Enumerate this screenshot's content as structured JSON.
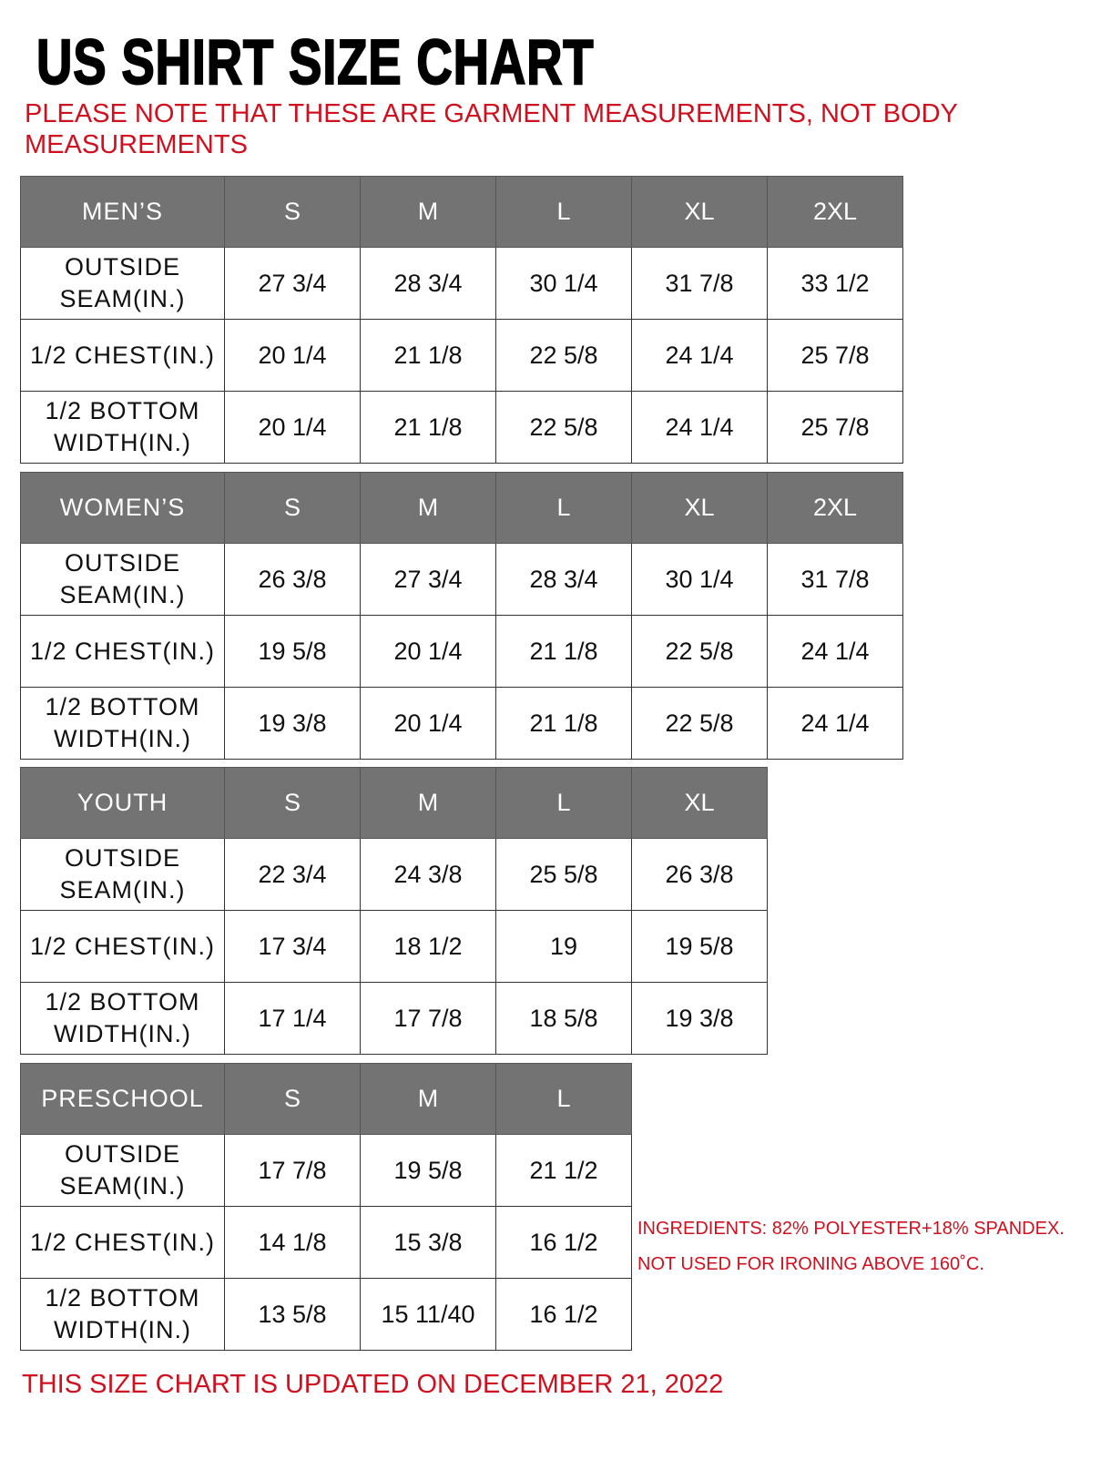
{
  "title": "US SHIRT SIZE CHART",
  "note": "PLEASE NOTE THAT THESE ARE GARMENT MEASUREMENTS, NOT BODY MEASUREMENTS",
  "colors": {
    "header_bg": "#737373",
    "accent_red": "#d0101e"
  },
  "tables": [
    {
      "category": "MEN’S",
      "sizes": [
        "S",
        "M",
        "L",
        "XL",
        "2XL"
      ],
      "rows": [
        {
          "label": "OUTSIDE SEAM(IN.)",
          "values": [
            "27 3/4",
            "28 3/4",
            "30 1/4",
            "31 7/8",
            "33 1/2"
          ]
        },
        {
          "label": "1/2 CHEST(IN.)",
          "values": [
            "20 1/4",
            "21 1/8",
            "22 5/8",
            "24 1/4",
            "25 7/8"
          ]
        },
        {
          "label": "1/2 BOTTOM WIDTH(IN.)",
          "values": [
            "20 1/4",
            "21 1/8",
            "22 5/8",
            "24 1/4",
            "25 7/8"
          ]
        }
      ]
    },
    {
      "category": "WOMEN’S",
      "sizes": [
        "S",
        "M",
        "L",
        "XL",
        "2XL"
      ],
      "rows": [
        {
          "label": "OUTSIDE SEAM(IN.)",
          "values": [
            "26 3/8",
            "27 3/4",
            "28 3/4",
            "30 1/4",
            "31 7/8"
          ]
        },
        {
          "label": "1/2 CHEST(IN.)",
          "values": [
            "19 5/8",
            "20 1/4",
            "21 1/8",
            "22 5/8",
            "24 1/4"
          ]
        },
        {
          "label": "1/2 BOTTOM WIDTH(IN.)",
          "values": [
            "19 3/8",
            "20 1/4",
            "21 1/8",
            "22 5/8",
            "24 1/4"
          ]
        }
      ]
    },
    {
      "category": "YOUTH",
      "sizes": [
        "S",
        "M",
        "L",
        "XL"
      ],
      "rows": [
        {
          "label": "OUTSIDE SEAM(IN.)",
          "values": [
            "22 3/4",
            "24 3/8",
            "25 5/8",
            "26 3/8"
          ]
        },
        {
          "label": "1/2 CHEST(IN.)",
          "values": [
            "17 3/4",
            "18 1/2",
            "19",
            "19 5/8"
          ]
        },
        {
          "label": "1/2 BOTTOM WIDTH(IN.)",
          "values": [
            "17 1/4",
            "17 7/8",
            "18 5/8",
            "19 3/8"
          ]
        }
      ]
    },
    {
      "category": "PRESCHOOL",
      "sizes": [
        "S",
        "M",
        "L"
      ],
      "rows": [
        {
          "label": "OUTSIDE SEAM(IN.)",
          "values": [
            "17 7/8",
            "19 5/8",
            "21 1/2"
          ]
        },
        {
          "label": "1/2 CHEST(IN.)",
          "values": [
            "14 1/8",
            "15 3/8",
            "16 1/2"
          ]
        },
        {
          "label": "1/2 BOTTOM WIDTH(IN.)",
          "values": [
            "13 5/8",
            "15 11/40",
            "16 1/2"
          ]
        }
      ]
    }
  ],
  "info": {
    "ingredients": "INGREDIENTS: 82% POLYESTER+18% SPANDEX.",
    "ironing": "NOT USED FOR IRONING ABOVE 160˚C."
  },
  "updated": "THIS SIZE CHART IS UPDATED ON DECEMBER 21, 2022"
}
